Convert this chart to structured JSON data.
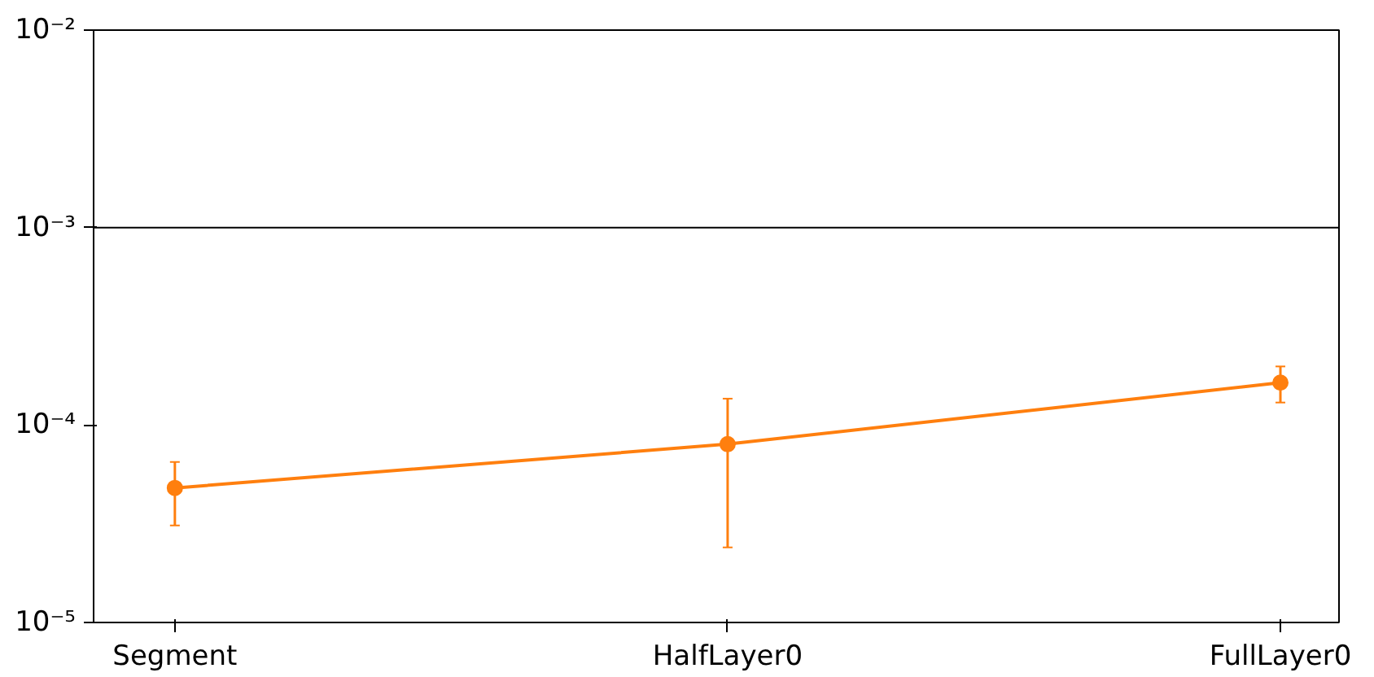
{
  "chart_data": {
    "type": "line",
    "categories": [
      "Segment",
      "HalfLayer0",
      "FullLayer0"
    ],
    "series": [
      {
        "color": "#ff7f0e",
        "values": [
          4.8e-05,
          8e-05,
          0.000164
        ],
        "errors": [
          [
            3.1e-05,
            6.5e-05
          ],
          [
            2.4e-05,
            0.000136
          ],
          [
            0.00013,
            0.000198
          ]
        ]
      }
    ],
    "log": "y",
    "ylim": [
      1e-05,
      0.01
    ],
    "yticks": [
      {
        "value": 1e-05,
        "label": "10⁻⁵"
      },
      {
        "value": 0.0001,
        "label": "10⁻⁴"
      },
      {
        "value": 0.001,
        "label": "10⁻³"
      },
      {
        "value": 0.01,
        "label": "10⁻²"
      }
    ],
    "ref_lines": [
      {
        "axis": "y",
        "value": 0.001,
        "color": "#000000"
      }
    ],
    "marker": "circle",
    "line_style": "solid",
    "grid": false
  }
}
